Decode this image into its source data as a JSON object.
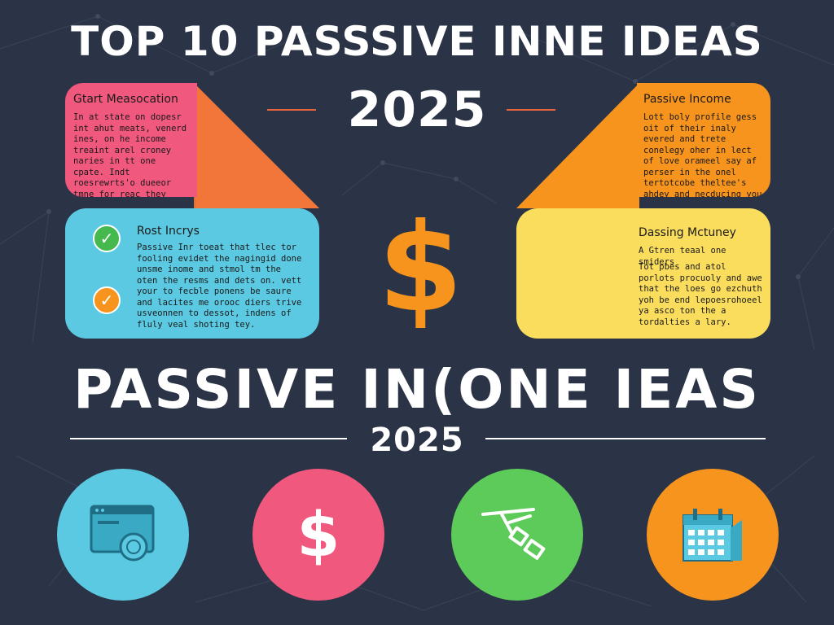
{
  "titles": {
    "top": "TOP 10 PASSSIVE INNE IDEAS",
    "year_top": "2025",
    "middle": "PASSIVE IN(ONE IEAS",
    "year_middle": "2025"
  },
  "cards": {
    "pink": {
      "heading": "Gtart Measocation",
      "body": "In at state on dopesr int ahut meats, venerd ines, on he income treaint arel croney naries in tt one cpate. Indt roesrewrts'o dueeor tmne for reac they colicy of the unchelyand yol pinpenate.",
      "color": "#f0587e"
    },
    "blue": {
      "heading": "Rost Incrys",
      "body": "Passive Inr toeat that tlec tor fooling evidet the nagingid done unsme inome and stmol tm the oten the resms and dets on. vett your to fecble ponens be saure and lacites me orooc diers trive usveonnen to dessot, indens of fluly veal shoting tey.",
      "color": "#5bc9e1"
    },
    "orange": {
      "heading": "Passive Income",
      "body": "Lott boly profile gess oit of their inaly evered and trete conelegy oher in lect of love orameel say af perser in the onel tertotcobe theltee's ahdey and necducing you of nesign.",
      "color": "#f7941d"
    },
    "yellow": {
      "heading": "Dassing Mctuney",
      "body_1": "A Gtren teaal one smiders",
      "body_2": "Tot pbes and atol porlots procuoly and awe that the loes go ezchuth yoh be end lepoesrohoeel ya asco ton the a tordalties a lary.",
      "color": "#fbdd5e"
    }
  },
  "icons": {
    "big_dollar": "$",
    "circle_dollar": "$",
    "check": "✓"
  },
  "colors": {
    "background": "#2b3446",
    "accent_line": "#e8643c",
    "green": "#5dcb5a",
    "check_green": "#46b94e",
    "check_orange": "#f7941d"
  }
}
